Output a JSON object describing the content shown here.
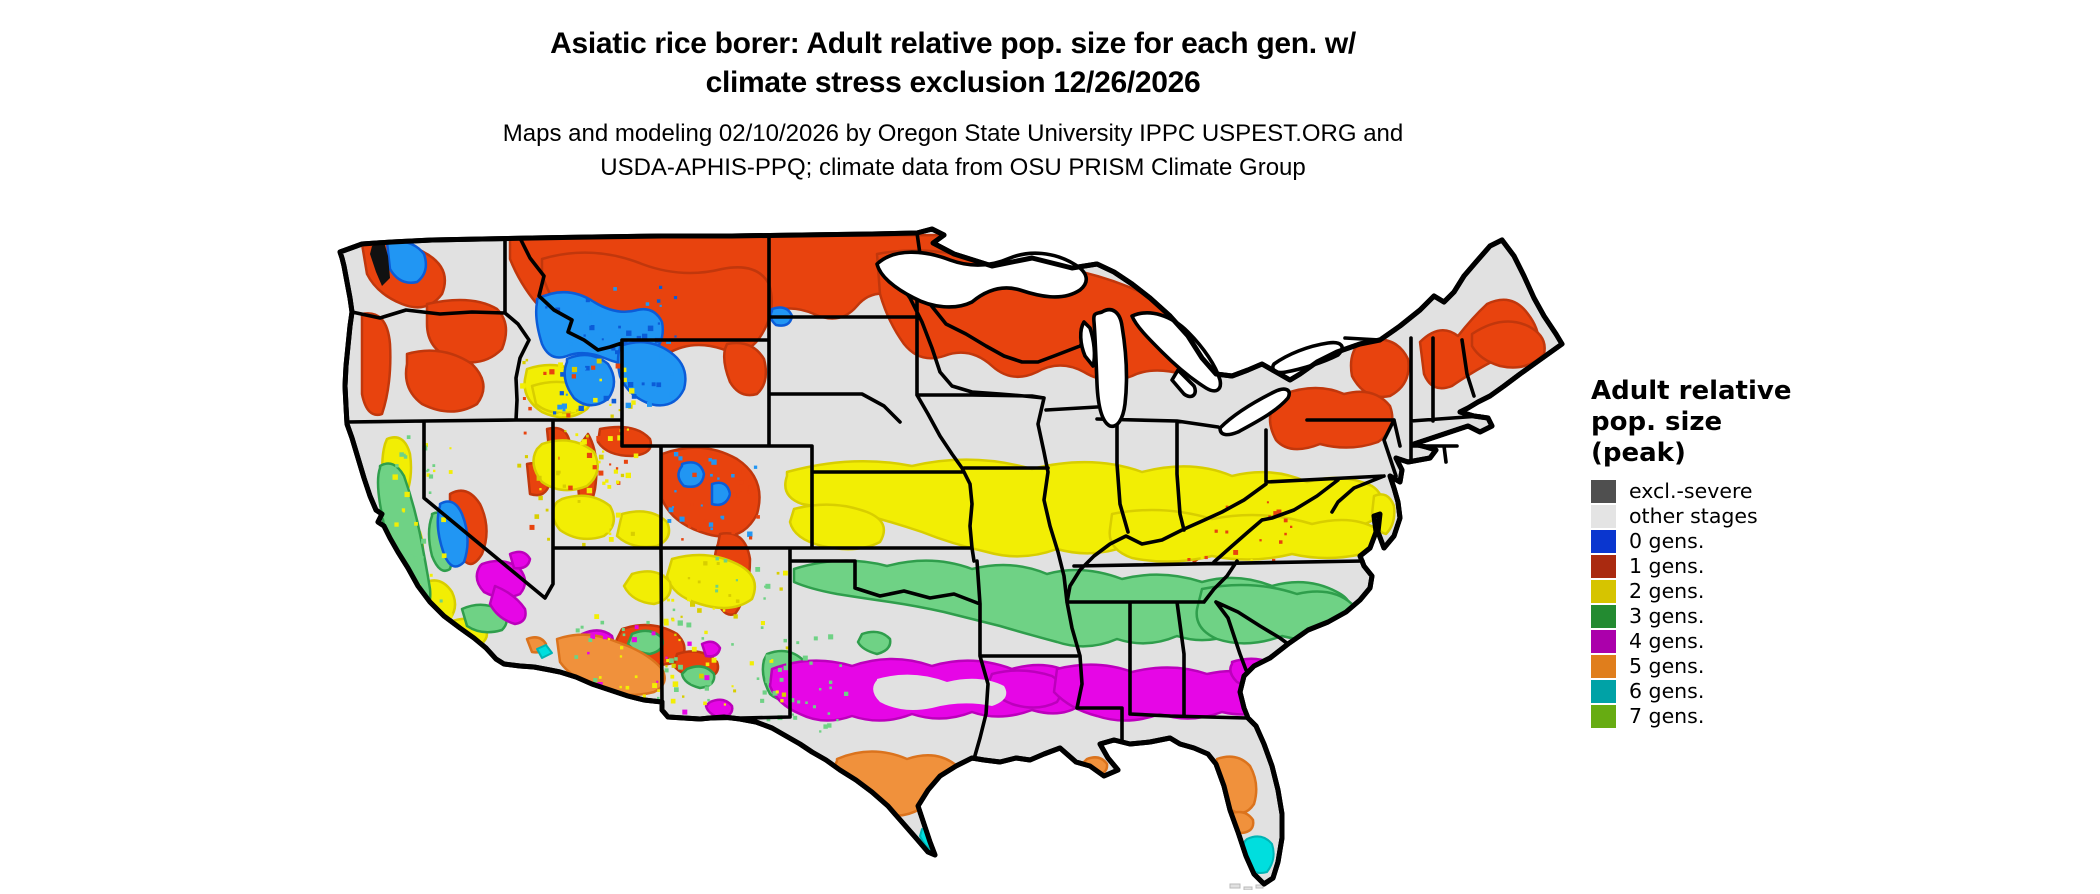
{
  "title": {
    "line1": "Asiatic rice borer: Adult relative pop. size for each gen. w/",
    "line2": "climate stress exclusion 12/26/2026"
  },
  "subtitle": {
    "line1": "Maps and modeling 02/10/2026 by Oregon State University IPPC USPEST.ORG and",
    "line2": "USDA-APHIS-PPQ; climate data from OSU PRISM Climate Group"
  },
  "legend": {
    "title_lines": [
      "Adult relative",
      "pop. size",
      "(peak)"
    ],
    "items": [
      {
        "label": "excl.-severe",
        "color": "#4f4f4f"
      },
      {
        "label": "other stages",
        "color": "#e4e4e4"
      },
      {
        "label": "0 gens.",
        "color": "#0a36cf"
      },
      {
        "label": "1 gens.",
        "color": "#aa2a10"
      },
      {
        "label": "2 gens.",
        "color": "#d6c400"
      },
      {
        "label": "3 gens.",
        "color": "#238b31"
      },
      {
        "label": "4 gens.",
        "color": "#ab00ab"
      },
      {
        "label": "5 gens.",
        "color": "#e07e1c"
      },
      {
        "label": "6 gens.",
        "color": "#00a2a6"
      },
      {
        "label": "7 gens.",
        "color": "#67ac12"
      }
    ]
  },
  "map": {
    "region": "Continental United States",
    "base_color": "#e1e1e1",
    "water_color": "#ffffff",
    "border_color": "#000000",
    "palette": {
      "gen0": "#2196f3",
      "gen0_dark": "#0b5cd8",
      "gen1": "#e8430e",
      "gen1_dark": "#c1370c",
      "gen2": "#f2ee04",
      "gen2_dark": "#d8ce00",
      "gen3": "#6fd285",
      "gen3_dark": "#2f9e4c",
      "gen4": "#e606e6",
      "gen4_dark": "#bc00bc",
      "gen5": "#f0913c",
      "gen5_dark": "#db731d",
      "gen6": "#00dede",
      "gen6_dark": "#00b4b4",
      "ink": "#111111"
    },
    "distribution": [
      {
        "class": "0 gens.",
        "where": "High mountains: N Cascades, central Idaho, Yellowstone region, Colorado Rockies, Sierra Nevada"
      },
      {
        "class": "1 gens.",
        "where": "Northern tier: E Washington/Oregon, Montana, North Dakota, N Minnesota, N Wisconsin, N Michigan, Adirondacks, N Pennsylvania, N New England, Colorado/Utah mountains"
      },
      {
        "class": "2 gens.",
        "where": "Central band: S Nebraska, N Kansas, S Iowa, Missouri, Illinois, Indiana, Ohio, Kentucky, Virginia; Great Basin, New Mexico, California coast ranges"
      },
      {
        "class": "3 gens.",
        "where": "Southern band: Oklahoma, Arkansas, S Tennessee line, N Mississippi/Alabama/Georgia, Carolinas; California Central Valley; W Texas mountains"
      },
      {
        "class": "4 gens.",
        "where": "Central Texas, Louisiana, S Mississippi/Alabama/Georgia, coastal South Carolina; SE California and Arizona desert fringes"
      },
      {
        "class": "5 gens.",
        "where": "South Texas, SW Arizona desert, central Florida"
      },
      {
        "class": "6 gens.",
        "where": "Southern tip of Florida, southern tip of Texas, Salton trough"
      },
      {
        "class": "other stages",
        "where": "Remaining gray areas"
      }
    ]
  }
}
